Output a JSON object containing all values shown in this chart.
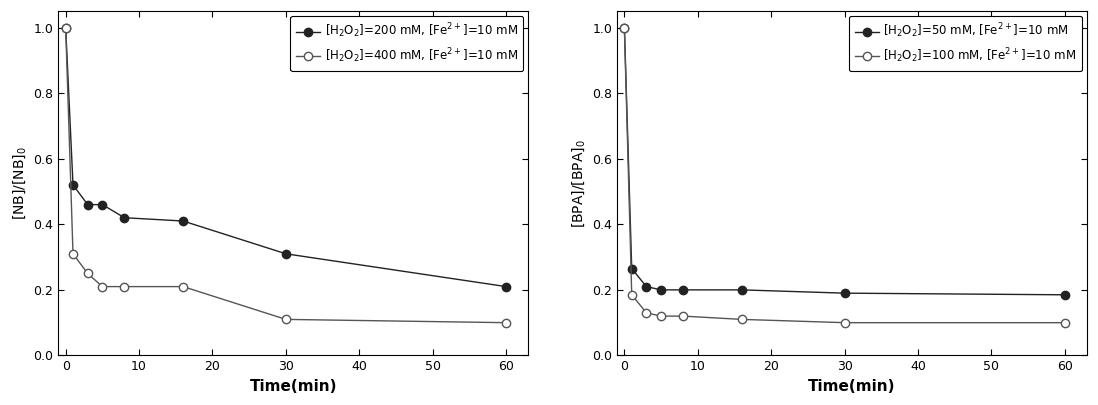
{
  "left_plot": {
    "ylabel": "[NB]/[NB]$_0$",
    "xlabel": "Time(min)",
    "xlim": [
      -1,
      63
    ],
    "ylim": [
      0.0,
      1.05
    ],
    "yticks": [
      0.0,
      0.2,
      0.4,
      0.6,
      0.8,
      1.0
    ],
    "xticks": [
      0,
      10,
      20,
      30,
      40,
      50,
      60
    ],
    "series": [
      {
        "label": "[H$_2$O$_2$]=200 mM, [Fe$^{2+}$]=10 mM",
        "x": [
          0,
          1,
          3,
          5,
          8,
          16,
          30,
          60
        ],
        "y": [
          1.0,
          0.52,
          0.46,
          0.46,
          0.42,
          0.41,
          0.31,
          0.21
        ],
        "marker": "o",
        "fillstyle": "full",
        "color": "#222222",
        "markersize": 6
      },
      {
        "label": "[H$_2$O$_2$]=400 mM, [Fe$^{2+}$]=10 mM",
        "x": [
          0,
          1,
          3,
          5,
          8,
          16,
          30,
          60
        ],
        "y": [
          1.0,
          0.31,
          0.25,
          0.21,
          0.21,
          0.21,
          0.11,
          0.1
        ],
        "marker": "o",
        "fillstyle": "none",
        "color": "#555555",
        "markersize": 6
      }
    ]
  },
  "right_plot": {
    "ylabel": "[BPA]/[BPA]$_0$",
    "xlabel": "Time(min)",
    "xlim": [
      -1,
      63
    ],
    "ylim": [
      0.0,
      1.05
    ],
    "yticks": [
      0.0,
      0.2,
      0.4,
      0.6,
      0.8,
      1.0
    ],
    "xticks": [
      0,
      10,
      20,
      30,
      40,
      50,
      60
    ],
    "series": [
      {
        "label": "[H$_2$O$_2$]=50 mM, [Fe$^{2+}$]=10 mM",
        "x": [
          0,
          1,
          3,
          5,
          8,
          16,
          30,
          60
        ],
        "y": [
          1.0,
          0.265,
          0.21,
          0.2,
          0.2,
          0.2,
          0.19,
          0.185
        ],
        "marker": "o",
        "fillstyle": "full",
        "color": "#222222",
        "markersize": 6
      },
      {
        "label": "[H$_2$O$_2$]=100 mM, [Fe$^{2+}$]=10 mM",
        "x": [
          0,
          1,
          3,
          5,
          8,
          16,
          30,
          60
        ],
        "y": [
          1.0,
          0.185,
          0.13,
          0.12,
          0.12,
          0.11,
          0.1,
          0.1
        ],
        "marker": "o",
        "fillstyle": "none",
        "color": "#555555",
        "markersize": 6
      }
    ]
  },
  "background_color": "#ffffff"
}
